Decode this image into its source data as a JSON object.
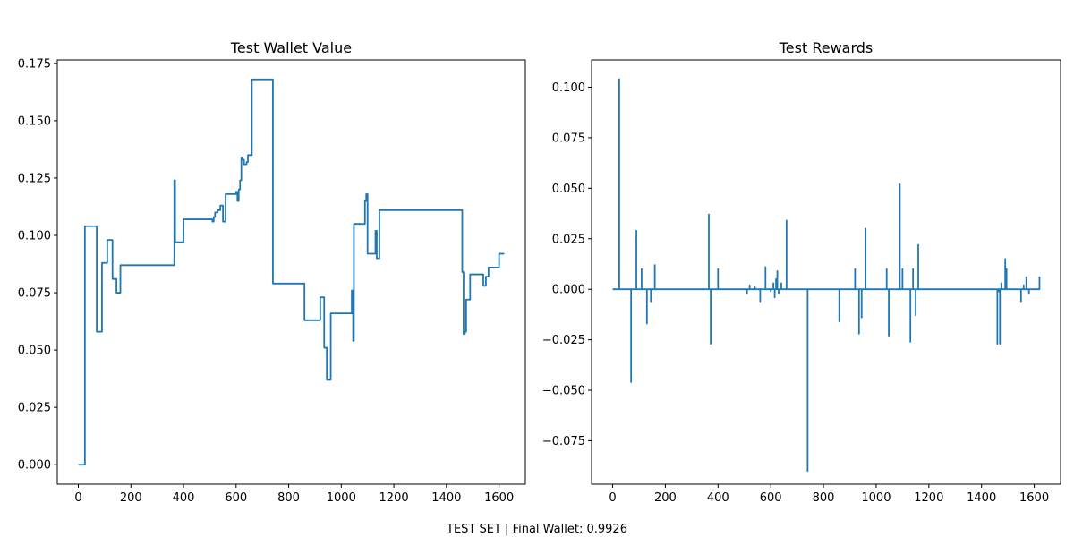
{
  "footer": {
    "text": "TEST SET | Final Wallet: 0.9926"
  },
  "chart_data": [
    {
      "type": "line",
      "title": "Test Wallet Value",
      "xlabel": "",
      "ylabel": "",
      "xlim": [
        -80,
        1700
      ],
      "ylim": [
        -0.0085,
        0.1765
      ],
      "xticks": [
        0,
        200,
        400,
        600,
        800,
        1000,
        1200,
        1400,
        1600
      ],
      "xtick_labels": [
        "0",
        "200",
        "400",
        "600",
        "800",
        "1000",
        "1200",
        "1400",
        "1600"
      ],
      "yticks": [
        0.0,
        0.025,
        0.05,
        0.075,
        0.1,
        0.125,
        0.15,
        0.175
      ],
      "ytick_labels": [
        "0.000",
        "0.025",
        "0.050",
        "0.075",
        "0.100",
        "0.125",
        "0.150",
        "0.175"
      ],
      "grid": false,
      "color": "#1f77b4",
      "x": [
        0,
        25,
        25,
        70,
        70,
        90,
        90,
        110,
        110,
        130,
        130,
        145,
        145,
        160,
        160,
        365,
        365,
        368,
        368,
        372,
        372,
        400,
        400,
        510,
        510,
        515,
        515,
        520,
        520,
        530,
        530,
        540,
        540,
        550,
        550,
        560,
        560,
        580,
        580,
        600,
        600,
        605,
        605,
        610,
        610,
        615,
        615,
        620,
        620,
        625,
        625,
        630,
        630,
        640,
        640,
        645,
        645,
        650,
        650,
        660,
        660,
        740,
        740,
        860,
        860,
        920,
        920,
        935,
        935,
        945,
        945,
        960,
        960,
        1040,
        1040,
        1045,
        1045,
        1048,
        1048,
        1090,
        1090,
        1095,
        1095,
        1100,
        1100,
        1130,
        1130,
        1135,
        1135,
        1145,
        1145,
        1150,
        1150,
        1460,
        1460,
        1465,
        1465,
        1470,
        1470,
        1475,
        1475,
        1490,
        1490,
        1495,
        1495,
        1540,
        1540,
        1550,
        1550,
        1560,
        1560,
        1570,
        1570,
        1600,
        1600,
        1620
      ],
      "y": [
        0.0,
        0.0,
        0.104,
        0.104,
        0.058,
        0.058,
        0.088,
        0.088,
        0.098,
        0.098,
        0.081,
        0.081,
        0.075,
        0.075,
        0.087,
        0.087,
        0.124,
        0.124,
        0.097,
        0.097,
        0.097,
        0.097,
        0.107,
        0.107,
        0.106,
        0.106,
        0.108,
        0.108,
        0.11,
        0.11,
        0.111,
        0.111,
        0.113,
        0.113,
        0.106,
        0.106,
        0.118,
        0.118,
        0.118,
        0.118,
        0.119,
        0.119,
        0.115,
        0.115,
        0.12,
        0.12,
        0.124,
        0.124,
        0.134,
        0.134,
        0.133,
        0.133,
        0.131,
        0.131,
        0.132,
        0.132,
        0.135,
        0.135,
        0.135,
        0.135,
        0.168,
        0.168,
        0.079,
        0.079,
        0.063,
        0.063,
        0.073,
        0.073,
        0.051,
        0.051,
        0.037,
        0.037,
        0.066,
        0.066,
        0.076,
        0.076,
        0.054,
        0.054,
        0.105,
        0.105,
        0.115,
        0.115,
        0.118,
        0.118,
        0.092,
        0.092,
        0.102,
        0.102,
        0.09,
        0.09,
        0.111,
        0.111,
        0.111,
        0.111,
        0.084,
        0.084,
        0.057,
        0.057,
        0.058,
        0.058,
        0.072,
        0.072,
        0.083,
        0.083,
        0.083,
        0.083,
        0.078,
        0.078,
        0.082,
        0.082,
        0.086,
        0.086,
        0.086,
        0.086,
        0.092,
        0.092
      ]
    },
    {
      "type": "line",
      "title": "Test Rewards",
      "xlabel": "",
      "ylabel": "",
      "xlim": [
        -80,
        1700
      ],
      "ylim": [
        -0.0965,
        0.1135
      ],
      "xticks": [
        0,
        200,
        400,
        600,
        800,
        1000,
        1200,
        1400,
        1600
      ],
      "xtick_labels": [
        "0",
        "200",
        "400",
        "600",
        "800",
        "1000",
        "1200",
        "1400",
        "1600"
      ],
      "yticks": [
        -0.075,
        -0.05,
        -0.025,
        0.0,
        0.025,
        0.05,
        0.075,
        0.1
      ],
      "ytick_labels": [
        "−0.075",
        "−0.050",
        "−0.025",
        "0.000",
        "0.025",
        "0.050",
        "0.075",
        "0.100"
      ],
      "grid": false,
      "color": "#1f77b4",
      "spikes": [
        [
          25,
          0.104
        ],
        [
          70,
          -0.046
        ],
        [
          90,
          0.029
        ],
        [
          110,
          0.01
        ],
        [
          130,
          -0.017
        ],
        [
          145,
          -0.006
        ],
        [
          160,
          0.012
        ],
        [
          365,
          0.037
        ],
        [
          372,
          -0.027
        ],
        [
          400,
          0.01
        ],
        [
          510,
          -0.002
        ],
        [
          520,
          0.002
        ],
        [
          540,
          0.001
        ],
        [
          560,
          -0.006
        ],
        [
          580,
          0.011
        ],
        [
          600,
          -0.001
        ],
        [
          610,
          0.003
        ],
        [
          615,
          -0.004
        ],
        [
          620,
          0.005
        ],
        [
          625,
          0.009
        ],
        [
          630,
          -0.002
        ],
        [
          640,
          0.003
        ],
        [
          660,
          0.034
        ],
        [
          740,
          -0.09
        ],
        [
          860,
          -0.016
        ],
        [
          920,
          0.01
        ],
        [
          935,
          -0.022
        ],
        [
          945,
          -0.014
        ],
        [
          960,
          0.03
        ],
        [
          1040,
          0.01
        ],
        [
          1048,
          -0.023
        ],
        [
          1090,
          0.052
        ],
        [
          1100,
          0.01
        ],
        [
          1130,
          -0.026
        ],
        [
          1140,
          0.01
        ],
        [
          1150,
          -0.013
        ],
        [
          1160,
          0.022
        ],
        [
          1460,
          -0.027
        ],
        [
          1465,
          -0.001
        ],
        [
          1470,
          -0.027
        ],
        [
          1475,
          0.003
        ],
        [
          1490,
          0.015
        ],
        [
          1495,
          0.01
        ],
        [
          1550,
          -0.006
        ],
        [
          1560,
          0.002
        ],
        [
          1570,
          0.006
        ],
        [
          1580,
          -0.002
        ],
        [
          1620,
          0.006
        ]
      ],
      "x_range": [
        0,
        1620
      ]
    }
  ]
}
